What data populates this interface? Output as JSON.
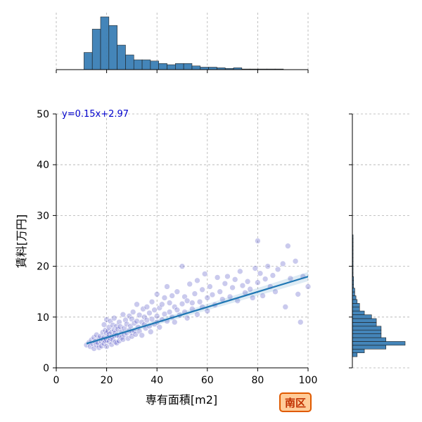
{
  "chart_data": {
    "type": "scatter",
    "xlabel": "専有面積[m2]",
    "ylabel": "賃料[万円]",
    "xlim": [
      0,
      100
    ],
    "ylim": [
      0,
      50
    ],
    "x_ticks": [
      0,
      20,
      40,
      60,
      80,
      100
    ],
    "y_ticks": [
      0,
      10,
      20,
      30,
      40,
      50
    ],
    "grid": true,
    "annotation": "y=0.15x+2.97",
    "badge": "南区",
    "colors": {
      "points": "#4040c0",
      "line": "#1f77b4",
      "hist": "#3b7fb6",
      "badge_border": "#e05a00",
      "badge_fill": "#ffcc99"
    },
    "regression": {
      "slope": 0.15,
      "intercept": 2.97,
      "x_range": [
        12,
        100
      ]
    },
    "marginal_x_hist": {
      "bin_start": 11,
      "bin_width": 3.3,
      "counts": [
        14,
        33,
        43,
        36,
        20,
        12,
        8,
        8,
        7,
        5,
        4,
        5,
        5,
        3,
        2,
        2,
        1.5,
        1,
        1.5,
        0.5,
        0.5,
        0.5,
        0.5,
        0.5
      ]
    },
    "marginal_y_hist": {
      "bin_start": 2.2,
      "bin_width": 0.75,
      "counts": [
        2,
        5,
        14,
        22,
        14,
        12,
        12,
        12,
        10,
        10,
        8,
        5,
        3,
        3,
        2,
        1.5,
        1,
        1,
        0.5,
        0.5,
        0.5,
        0.3,
        0.3,
        0.3,
        0.3,
        0.3,
        0.3,
        0.3,
        0.3,
        0.3,
        0.3,
        0.3
      ]
    },
    "points": [
      [
        12,
        4.5
      ],
      [
        13,
        5
      ],
      [
        13.5,
        4.2
      ],
      [
        14,
        5.5
      ],
      [
        14.5,
        4.8
      ],
      [
        15,
        6
      ],
      [
        15,
        3.8
      ],
      [
        15.5,
        5.2
      ],
      [
        16,
        4.5
      ],
      [
        16,
        6.5
      ],
      [
        16.5,
        5
      ],
      [
        17,
        4
      ],
      [
        17,
        5.8
      ],
      [
        17.5,
        6.2
      ],
      [
        18,
        5.1
      ],
      [
        18,
        4.3
      ],
      [
        18.5,
        7
      ],
      [
        18.5,
        5.6
      ],
      [
        19,
        6
      ],
      [
        19,
        4.8
      ],
      [
        19,
        8.5
      ],
      [
        19.5,
        5.3
      ],
      [
        19.5,
        7.4
      ],
      [
        20,
        6.8
      ],
      [
        20,
        5.5
      ],
      [
        20,
        9.5
      ],
      [
        20,
        4.2
      ],
      [
        20.5,
        7.2
      ],
      [
        20.5,
        6
      ],
      [
        21,
        5.2
      ],
      [
        21,
        8
      ],
      [
        21,
        6.6
      ],
      [
        21.5,
        9.2
      ],
      [
        21.5,
        5.8
      ],
      [
        22,
        7
      ],
      [
        22,
        6.1
      ],
      [
        22,
        4.6
      ],
      [
        22.5,
        8.4
      ],
      [
        22.5,
        5.5
      ],
      [
        23,
        6.3
      ],
      [
        23,
        9.8
      ],
      [
        23,
        7.5
      ],
      [
        23.5,
        5.1
      ],
      [
        23.5,
        6.9
      ],
      [
        24,
        8.2
      ],
      [
        24,
        6.4
      ],
      [
        24,
        4.9
      ],
      [
        24.5,
        7.6
      ],
      [
        25,
        6.2
      ],
      [
        25,
        9
      ],
      [
        25,
        5.3
      ],
      [
        25.5,
        8.1
      ],
      [
        26,
        7.1
      ],
      [
        26,
        6
      ],
      [
        26.5,
        10.5
      ],
      [
        26.5,
        5.6
      ],
      [
        27,
        7.8
      ],
      [
        27,
        6.5
      ],
      [
        27.5,
        9.4
      ],
      [
        28,
        8.6
      ],
      [
        28,
        6.9
      ],
      [
        28.5,
        5.8
      ],
      [
        29,
        7.4
      ],
      [
        29,
        10.2
      ],
      [
        29.5,
        8.2
      ],
      [
        30,
        7
      ],
      [
        30,
        9.6
      ],
      [
        30,
        6.2
      ],
      [
        30.5,
        11
      ],
      [
        31,
        8.8
      ],
      [
        31,
        7.3
      ],
      [
        31.5,
        6.6
      ],
      [
        32,
        9.2
      ],
      [
        32,
        12.5
      ],
      [
        32.5,
        8
      ],
      [
        33,
        10.4
      ],
      [
        33,
        7.2
      ],
      [
        34,
        9
      ],
      [
        34,
        6.4
      ],
      [
        34.5,
        11.6
      ],
      [
        35,
        8.5
      ],
      [
        35,
        10
      ],
      [
        35.5,
        7.8
      ],
      [
        36,
        12
      ],
      [
        36,
        9.4
      ],
      [
        37,
        8.2
      ],
      [
        37,
        10.8
      ],
      [
        37.5,
        7.1
      ],
      [
        38,
        13
      ],
      [
        38,
        9.6
      ],
      [
        39,
        8.6
      ],
      [
        39,
        11.4
      ],
      [
        40,
        10.2
      ],
      [
        40,
        9
      ],
      [
        40,
        14.5
      ],
      [
        41,
        8
      ],
      [
        41,
        11.8
      ],
      [
        42,
        12.5
      ],
      [
        42,
        9.5
      ],
      [
        43,
        10.6
      ],
      [
        43,
        13.8
      ],
      [
        44,
        9.2
      ],
      [
        44,
        16
      ],
      [
        45,
        11
      ],
      [
        45,
        12.8
      ],
      [
        46,
        10
      ],
      [
        46,
        14.2
      ],
      [
        47,
        9
      ],
      [
        47,
        12
      ],
      [
        48,
        11.4
      ],
      [
        48,
        15
      ],
      [
        49,
        10.4
      ],
      [
        50,
        12.6
      ],
      [
        50,
        20
      ],
      [
        51,
        11
      ],
      [
        51,
        14
      ],
      [
        52,
        9.8
      ],
      [
        52,
        13.2
      ],
      [
        53,
        16.5
      ],
      [
        54,
        11.6
      ],
      [
        54,
        12.8
      ],
      [
        55,
        14.6
      ],
      [
        56,
        10.5
      ],
      [
        56,
        17.2
      ],
      [
        57,
        13
      ],
      [
        58,
        12
      ],
      [
        58,
        15.4
      ],
      [
        59,
        18.5
      ],
      [
        60,
        13.8
      ],
      [
        60,
        11.2
      ],
      [
        61,
        16
      ],
      [
        62,
        14.4
      ],
      [
        63,
        12.4
      ],
      [
        64,
        17.8
      ],
      [
        65,
        15
      ],
      [
        66,
        13.5
      ],
      [
        67,
        16.6
      ],
      [
        68,
        18
      ],
      [
        69,
        14
      ],
      [
        70,
        15.8
      ],
      [
        71,
        17.4
      ],
      [
        72,
        13.2
      ],
      [
        73,
        19
      ],
      [
        74,
        16.2
      ],
      [
        75,
        14.8
      ],
      [
        76,
        17
      ],
      [
        77,
        15.5
      ],
      [
        78,
        13.8
      ],
      [
        79,
        19.6
      ],
      [
        80,
        25
      ],
      [
        80,
        16.8
      ],
      [
        81,
        18.6
      ],
      [
        82,
        14.2
      ],
      [
        83,
        17.5
      ],
      [
        84,
        20
      ],
      [
        85,
        16
      ],
      [
        86,
        18.2
      ],
      [
        87,
        15
      ],
      [
        88,
        19.4
      ],
      [
        90,
        20.5
      ],
      [
        91,
        12
      ],
      [
        92,
        24
      ],
      [
        93,
        17.6
      ],
      [
        95,
        21
      ],
      [
        96,
        14.5
      ],
      [
        97,
        9
      ],
      [
        98,
        18
      ],
      [
        100,
        16
      ]
    ]
  }
}
